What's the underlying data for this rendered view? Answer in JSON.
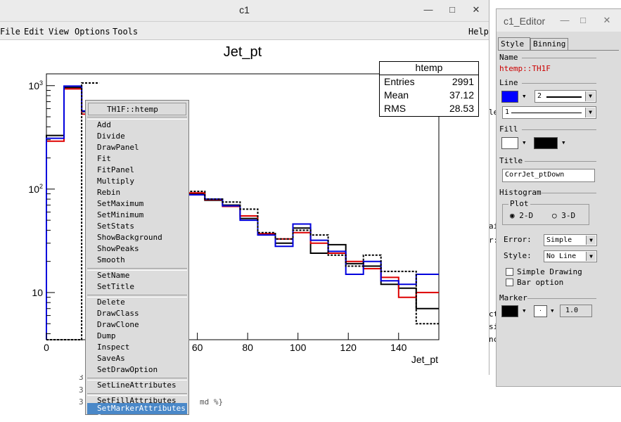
{
  "background_editor": {
    "lines": [
      "3",
      "3",
      "3",
      "md %}"
    ]
  },
  "main_window": {
    "title": "c1",
    "buttons": {
      "minimize": "—",
      "maximize": "□",
      "close": "✕"
    },
    "menu": [
      "File",
      "Edit",
      "View",
      "Options",
      "Tools"
    ],
    "help": "Help"
  },
  "stats_box": {
    "title": "htemp",
    "rows": [
      {
        "label": "Entries",
        "value": "2991"
      },
      {
        "label": "Mean",
        "value": "37.12"
      },
      {
        "label": "RMS",
        "value": "28.53"
      }
    ]
  },
  "chart_data": {
    "type": "line",
    "title": "Jet_pt",
    "xlabel": "Jet_pt",
    "ylabel": "",
    "xlim": [
      0,
      156
    ],
    "ylim": [
      3.5,
      1300
    ],
    "yscale": "log",
    "x_ticks": [
      "0",
      "20",
      "40",
      "60",
      "80",
      "100",
      "120",
      "140"
    ],
    "y_ticks": [
      "10",
      "10^2",
      "10^3"
    ],
    "bin_edges": [
      0,
      7,
      14,
      21,
      28,
      35,
      42,
      49,
      56,
      63,
      70,
      77,
      84,
      91,
      98,
      105,
      112,
      119,
      126,
      133,
      140,
      147,
      156
    ],
    "series": [
      {
        "color": "#000000",
        "dash": "",
        "values": [
          330,
          960,
          560,
          null,
          null,
          null,
          null,
          null,
          90,
          78,
          70,
          52,
          37,
          30,
          42,
          24,
          29,
          19,
          18,
          12,
          11,
          7
        ]
      },
      {
        "color": "#dd0000",
        "dash": "",
        "values": [
          290,
          930,
          530,
          null,
          null,
          null,
          null,
          null,
          92,
          79,
          68,
          55,
          37,
          33,
          38,
          30,
          24,
          20,
          17,
          14,
          9,
          10
        ]
      },
      {
        "color": "#0000dd",
        "dash": "",
        "values": [
          310,
          990,
          570,
          null,
          null,
          null,
          null,
          null,
          88,
          80,
          69,
          50,
          36,
          28,
          46,
          32,
          25,
          15,
          20,
          13,
          12,
          15
        ]
      },
      {
        "color": "#000000",
        "dash": "3,2",
        "values": [
          3.5,
          3.5,
          1060,
          null,
          null,
          null,
          null,
          null,
          95,
          80,
          75,
          64,
          38,
          33,
          40,
          36,
          23,
          18,
          23,
          16,
          16,
          5
        ]
      }
    ]
  },
  "context_menu": {
    "title": "TH1F::htemp",
    "group1": [
      "Add",
      "Divide",
      "DrawPanel",
      "Fit",
      "FitPanel",
      "Multiply",
      "Rebin",
      "SetMaximum",
      "SetMinimum",
      "SetStats",
      "ShowBackground",
      "ShowPeaks",
      "Smooth"
    ],
    "group2": [
      "SetName",
      "SetTitle"
    ],
    "group3": [
      "Delete",
      "DrawClass",
      "DrawClone",
      "Dump",
      "Inspect",
      "SaveAs",
      "SetDrawOption"
    ],
    "group4": [
      "SetLineAttributes"
    ],
    "group5": [
      "SetFillAttributes"
    ],
    "highlighted": "SetMarkerAttributes ?"
  },
  "editor": {
    "title": "c1_Editor",
    "buttons": {
      "minimize": "—",
      "maximize": "□",
      "close": "✕"
    },
    "tabs": [
      "Style",
      "Binning"
    ],
    "name_label": "Name",
    "name_value": "htemp::TH1F",
    "line_label": "Line",
    "line_color": "#0000ff",
    "line_width": "2",
    "line_style": "1",
    "fill_label": "Fill",
    "fill_color1": "#ffffff",
    "fill_color2": "#000000",
    "title_label": "Title",
    "title_value": "CorrJet_ptDown",
    "histogram_label": "Histogram",
    "plot_label": "Plot",
    "plot_2d": "2-D",
    "plot_3d": "3-D",
    "error_label": "Error:",
    "error_value": "Simple",
    "style_label": "Style:",
    "style_value": "No Line",
    "simple_drawing": "Simple Drawing",
    "bar_option": "Bar option",
    "marker_label": "Marker",
    "marker_color": "#000000",
    "marker_size": "1.0",
    "marker_style": "·"
  },
  "bg_right_fragments": [
    "le",
    "ai",
    "r:",
    "ct",
    "si",
    "nc"
  ]
}
